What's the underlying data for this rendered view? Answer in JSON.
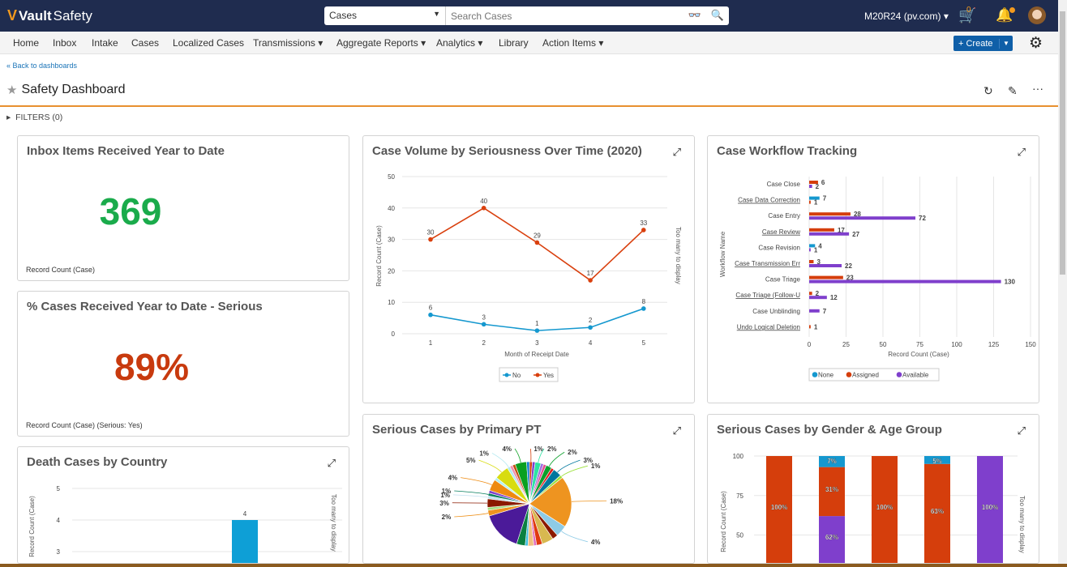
{
  "header": {
    "logo_mark": "V",
    "logo_bold": "Vault",
    "logo_text": "Safety",
    "search_scope": "Cases",
    "search_placeholder": "Search Cases",
    "user": "M20R24 (pv.com)",
    "cart_count": "0"
  },
  "nav": {
    "items": [
      "Home",
      "Inbox",
      "Intake",
      "Cases",
      "Localized Cases",
      "Transmissions ▾",
      "Aggregate Reports ▾",
      "Analytics ▾",
      "Library",
      "Action Items ▾"
    ],
    "create_label": "+ Create"
  },
  "page": {
    "back_link": "« Back to dashboards",
    "title": "Safety Dashboard",
    "filters": "FILTERS (0)"
  },
  "cards": {
    "inbox": {
      "title": "Inbox Items Received Year to Date",
      "value": "369",
      "value_color": "#1aab4b",
      "footer": "Record Count (Case)"
    },
    "serious": {
      "title": "% Cases Received Year to Date - Serious",
      "value": "89%",
      "value_color": "#c83a0e",
      "footer": "Record Count (Case)  (Serious: Yes)"
    },
    "death": {
      "title": "Death Cases by Country"
    },
    "volume": {
      "title": "Case Volume by Seriousness Over Time (2020)"
    },
    "workflow": {
      "title": "Case Workflow Tracking"
    },
    "pt": {
      "title": "Serious Cases by Primary PT"
    },
    "gender": {
      "title": "Serious Cases by Gender & Age Group"
    }
  },
  "chart_data": [
    {
      "id": "death",
      "type": "bar",
      "ylabel": "Record Count (Case)",
      "right_note": "Too many to display",
      "yticks": [
        3,
        4,
        5
      ],
      "values": [
        {
          "value": 4,
          "label": "4"
        }
      ],
      "color": "#0e9fd6",
      "grid": true
    },
    {
      "id": "volume",
      "type": "line",
      "xlabel": "Month of Receipt Date",
      "ylabel": "Record Count (Case)",
      "right_note": "Too many to display",
      "x": [
        1,
        2,
        3,
        4,
        5
      ],
      "ylim": [
        0,
        50
      ],
      "yticks": [
        0,
        10,
        20,
        30,
        40,
        50
      ],
      "series": [
        {
          "name": "No",
          "values": [
            6,
            3,
            1,
            2,
            8
          ],
          "color": "#1598cf"
        },
        {
          "name": "Yes",
          "values": [
            30,
            40,
            29,
            17,
            33
          ],
          "color": "#d9400e"
        }
      ],
      "legend": "bottom",
      "grid": true
    },
    {
      "id": "workflow",
      "type": "bar",
      "orientation": "horizontal",
      "xlabel": "Record Count (Case)",
      "ylabel": "Workflow Name",
      "xlim": [
        0,
        150
      ],
      "xticks": [
        0,
        25,
        50,
        75,
        100,
        125,
        150
      ],
      "categories": [
        "Case Close",
        "Case Data Correction",
        "Case Entry",
        "Case Review",
        "Case Revision",
        "Case Transmission Err",
        "Case Triage",
        "Case Triage (Follow-U",
        "Case Unblinding",
        "Undo Logical Deletion"
      ],
      "series": [
        {
          "name": "None",
          "color": "#1598cf",
          "values": [
            null,
            7,
            null,
            null,
            4,
            null,
            null,
            null,
            null,
            null
          ]
        },
        {
          "name": "Assigned",
          "color": "#d53e0c",
          "values": [
            6,
            1,
            28,
            17,
            null,
            3,
            23,
            2,
            null,
            1
          ]
        },
        {
          "name": "Available",
          "color": "#7f3fcc",
          "values": [
            2,
            null,
            72,
            27,
            1,
            22,
            130,
            12,
            7,
            null
          ]
        }
      ],
      "legend": "bottom",
      "grid": true
    },
    {
      "id": "pt",
      "type": "pie",
      "slices": [
        {
          "v": 1,
          "c": "#d5400d",
          "label": "1%"
        },
        {
          "v": 1,
          "c": "#7f3fcc"
        },
        {
          "v": 2,
          "c": "#2ee3a3",
          "label": "2%"
        },
        {
          "v": 1,
          "c": "#a070e0"
        },
        {
          "v": 1,
          "c": "#e05090"
        },
        {
          "v": 2,
          "c": "#0aa02a",
          "label": "2%"
        },
        {
          "v": 1,
          "c": "#e02020"
        },
        {
          "v": 3,
          "c": "#00779e",
          "label": "3%"
        },
        {
          "v": 1,
          "c": "#9be03a",
          "label": "1%"
        },
        {
          "v": 18,
          "c": "#ee9420",
          "label": "18%"
        },
        {
          "v": 4,
          "c": "#8ecbe6",
          "label": "4%"
        },
        {
          "v": 2,
          "c": "#8b1a00"
        },
        {
          "v": 4,
          "c": "#d8b850"
        },
        {
          "v": 2,
          "c": "#e03a10"
        },
        {
          "v": 1,
          "c": "#e070c0"
        },
        {
          "v": 2,
          "c": "#f0c080"
        },
        {
          "v": 1,
          "c": "#40c0e0"
        },
        {
          "v": 3,
          "c": "#0a8040"
        },
        {
          "v": 14,
          "c": "#4b1a99"
        },
        {
          "v": 2,
          "c": "#ee9420",
          "label": "2%"
        },
        {
          "v": 1,
          "c": "#a0e080"
        },
        {
          "v": 3,
          "c": "#8b1a00",
          "label": "3%"
        },
        {
          "v": 1,
          "c": "#c0e0f0",
          "label": "1%"
        },
        {
          "v": 1,
          "c": "#0a8060",
          "label": "1%"
        },
        {
          "v": 1,
          "c": "#7f3fcc"
        },
        {
          "v": 4,
          "c": "#ee8a10",
          "label": "4%"
        },
        {
          "v": 1,
          "c": "#b0f0f0"
        },
        {
          "v": 5,
          "c": "#d8dc10",
          "label": "5%"
        },
        {
          "v": 1,
          "c": "#b0e8f0",
          "label": "1%"
        },
        {
          "v": 1,
          "c": "#f090b0"
        },
        {
          "v": 1,
          "c": "#c05010"
        },
        {
          "v": 4,
          "c": "#0aa020",
          "label": "4%"
        },
        {
          "v": 1,
          "c": "#1080d0"
        }
      ]
    },
    {
      "id": "gender",
      "type": "bar",
      "stacked": true,
      "ylabel": "Record Count (Case)",
      "right_note": "Too many to display",
      "yticks": [
        50,
        75,
        100
      ],
      "series_colors": {
        "None": "#1598cf",
        "Assigned": "#d53e0c",
        "Available": "#7f3fcc"
      },
      "bars": [
        {
          "None": 0,
          "Assigned": 100,
          "Available": 0,
          "labels": {
            "Assigned": "100%"
          }
        },
        {
          "None": 7,
          "Assigned": 31,
          "Available": 62,
          "labels": {
            "None": "7%",
            "Assigned": "31%",
            "Available": "62%"
          }
        },
        {
          "None": 0,
          "Assigned": 100,
          "Available": 0,
          "labels": {
            "Assigned": "100%"
          }
        },
        {
          "None": 5,
          "Assigned": 63,
          "Available": 32,
          "labels": {
            "None": "5%",
            "Assigned": "63%"
          }
        },
        {
          "None": 0,
          "Assigned": 0,
          "Available": 100,
          "labels": {
            "Available": "100%"
          }
        }
      ]
    }
  ]
}
